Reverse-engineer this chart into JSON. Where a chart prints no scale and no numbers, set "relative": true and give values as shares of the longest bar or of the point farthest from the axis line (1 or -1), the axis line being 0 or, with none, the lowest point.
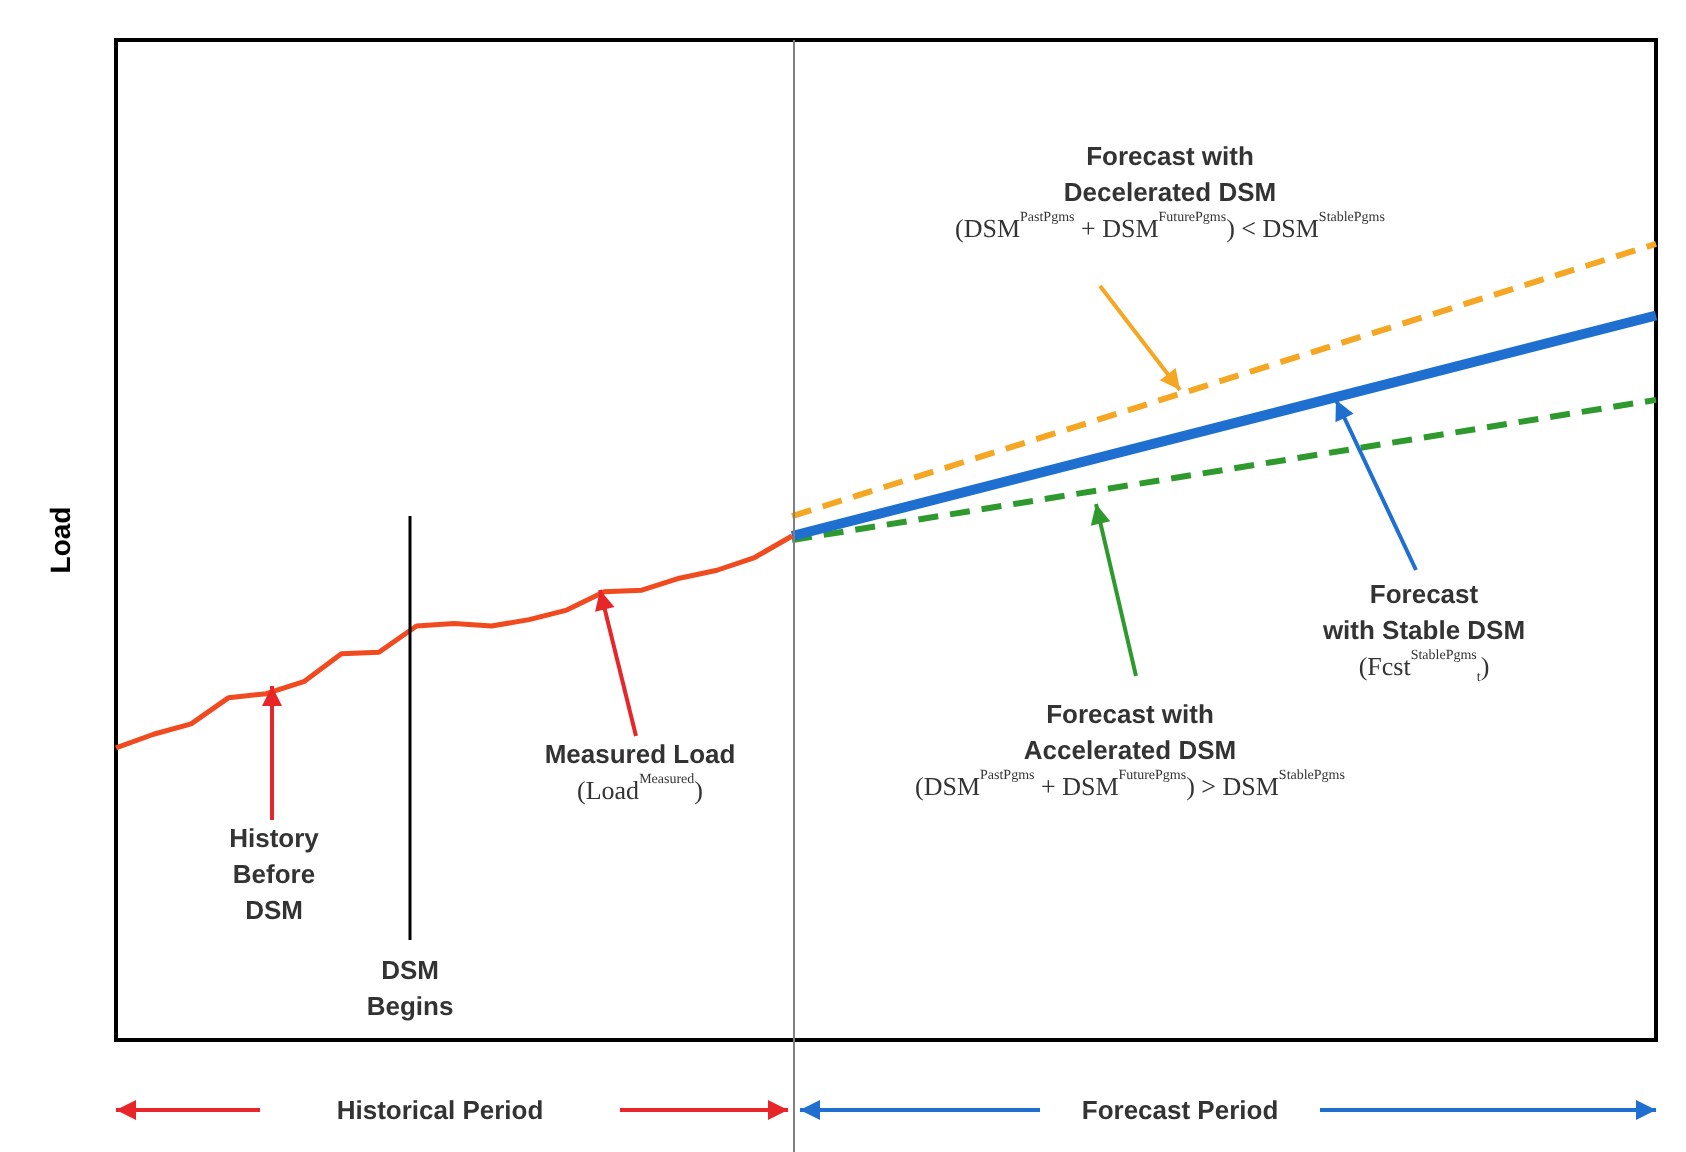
{
  "chart_data": {
    "type": "line",
    "relative": true,
    "ylabel": "Load",
    "categories": [
      null,
      null,
      null,
      null,
      null,
      null,
      null,
      null,
      null,
      null,
      null,
      null,
      null,
      null,
      null,
      null,
      null,
      null,
      null,
      null,
      null,
      null,
      null,
      null,
      null,
      null,
      null,
      null,
      null,
      null,
      null,
      null,
      null,
      null,
      null,
      null,
      null,
      null,
      null,
      null,
      null,
      null
    ],
    "series": [
      {
        "color": "#f04a1e",
        "line_style": "solid",
        "values": [
          0.367,
          0.384,
          0.397,
          0.43,
          0.435,
          0.45,
          0.485,
          0.487,
          0.52,
          0.523,
          0.52,
          0.528,
          0.54,
          0.563,
          0.565,
          0.58,
          0.59,
          0.606,
          0.633,
          null,
          null,
          null,
          null,
          null,
          null,
          null,
          null,
          null,
          null,
          null,
          null,
          null,
          null,
          null,
          null,
          null,
          null,
          null,
          null,
          null,
          null,
          null
        ]
      },
      {
        "color": "#f5a623",
        "line_style": "dashed",
        "values": [
          null,
          null,
          null,
          null,
          null,
          null,
          null,
          null,
          null,
          null,
          null,
          null,
          null,
          null,
          null,
          null,
          null,
          null,
          0.658,
          null,
          null,
          null,
          null,
          null,
          null,
          null,
          null,
          null,
          null,
          null,
          null,
          null,
          null,
          null,
          null,
          null,
          null,
          null,
          null,
          null,
          null,
          1.0
        ]
      },
      {
        "color": "#1f6fd1",
        "line_style": "solid",
        "values": [
          null,
          null,
          null,
          null,
          null,
          null,
          null,
          null,
          null,
          null,
          null,
          null,
          null,
          null,
          null,
          null,
          null,
          null,
          0.633,
          null,
          null,
          null,
          null,
          null,
          null,
          null,
          null,
          null,
          null,
          null,
          null,
          null,
          null,
          null,
          null,
          null,
          null,
          null,
          null,
          null,
          null,
          0.91
        ]
      },
      {
        "color": "#2e9a2e",
        "line_style": "dashed",
        "values": [
          null,
          null,
          null,
          null,
          null,
          null,
          null,
          null,
          null,
          null,
          null,
          null,
          null,
          null,
          null,
          null,
          null,
          null,
          0.628,
          null,
          null,
          null,
          null,
          null,
          null,
          null,
          null,
          null,
          null,
          null,
          null,
          null,
          null,
          null,
          null,
          null,
          null,
          null,
          null,
          null,
          null,
          0.804
        ]
      }
    ],
    "marker": "none",
    "annotations": [
      "Forecast with\nDecelerated DSM\n(DSM$^{PastPgms}$ + DSM$^{FuturePgms}$) < DSM$^{StablePgms}$",
      "Forecast\nwith Stable DSM\n(Fcst$^{StablePgms}$$_{t}$)",
      "Forecast with\nAccelerated DSM\n(DSM$^{PastPgms}$ + DSM$^{FuturePgms}$) > DSM$^{StablePgms}$",
      "Measured Load\n(Load$^{Measured}$)",
      "History\nBefore\nDSM",
      "DSM\nBegins",
      "Historical Period",
      "Forecast Period"
    ]
  }
}
